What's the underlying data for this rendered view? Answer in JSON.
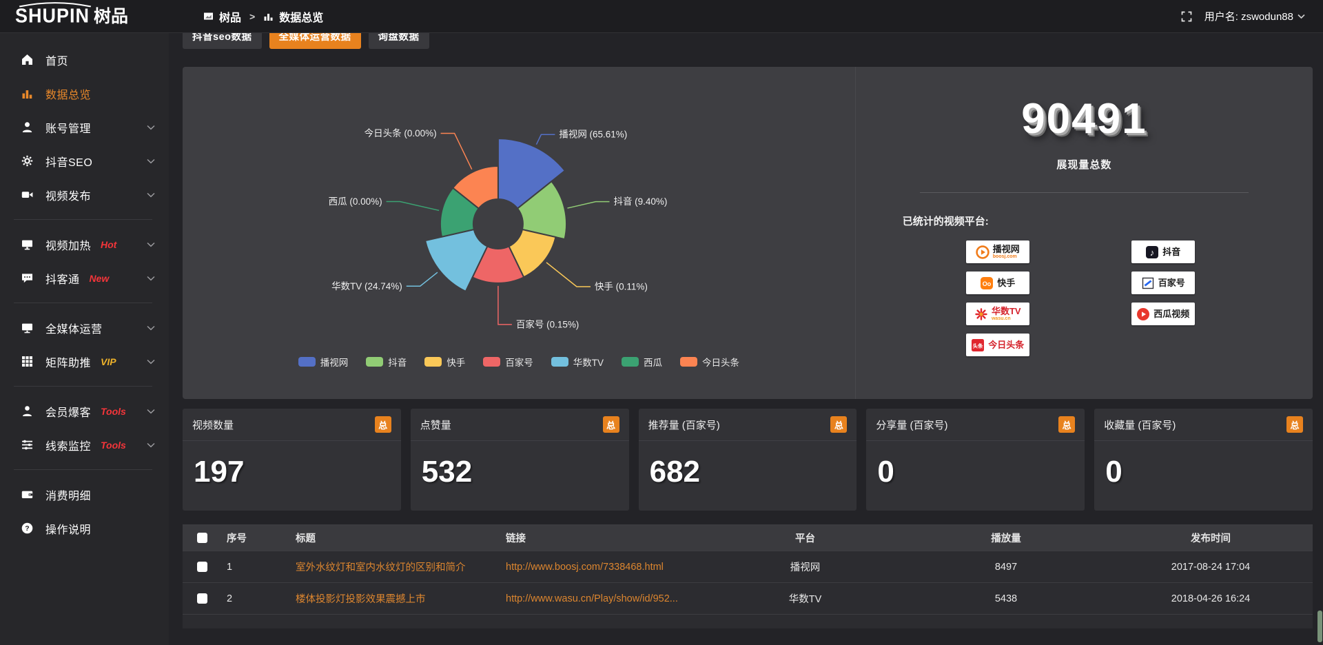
{
  "accent": "#e8821e",
  "header": {
    "logo_en": "SHUPIN",
    "logo_cn": "树品",
    "breadcrumb": {
      "root": "树品",
      "separator": ">",
      "current": "数据总览"
    },
    "username": "用户名: zswodun88"
  },
  "sidebar": {
    "items": [
      {
        "label": "首页",
        "icon": "home",
        "active": false,
        "chevron": false,
        "badge": "",
        "badge_color": "",
        "divider_after": false
      },
      {
        "label": "数据总览",
        "icon": "bar-chart",
        "active": true,
        "chevron": false,
        "badge": "",
        "badge_color": "",
        "divider_after": false
      },
      {
        "label": "账号管理",
        "icon": "user",
        "active": false,
        "chevron": true,
        "badge": "",
        "badge_color": "",
        "divider_after": false
      },
      {
        "label": "抖音SEO",
        "icon": "gear",
        "active": false,
        "chevron": true,
        "badge": "",
        "badge_color": "",
        "divider_after": false
      },
      {
        "label": "视频发布",
        "icon": "video",
        "active": false,
        "chevron": true,
        "badge": "",
        "badge_color": "",
        "divider_after": true
      },
      {
        "label": "视频加热",
        "icon": "screen",
        "active": false,
        "chevron": true,
        "badge": "Hot",
        "badge_color": "#f5353a",
        "divider_after": false
      },
      {
        "label": "抖客通",
        "icon": "chat",
        "active": false,
        "chevron": true,
        "badge": "New",
        "badge_color": "#f5353a",
        "divider_after": true
      },
      {
        "label": "全媒体运营",
        "icon": "monitor",
        "active": false,
        "chevron": true,
        "badge": "",
        "badge_color": "",
        "divider_after": false
      },
      {
        "label": "矩阵助推",
        "icon": "grid",
        "active": false,
        "chevron": true,
        "badge": "VIP",
        "badge_color": "#efb32a",
        "divider_after": true
      },
      {
        "label": "会员爆客",
        "icon": "person",
        "active": false,
        "chevron": true,
        "badge": "Tools",
        "badge_color": "#f5353a",
        "divider_after": false
      },
      {
        "label": "线索监控",
        "icon": "sliders",
        "active": false,
        "chevron": true,
        "badge": "Tools",
        "badge_color": "#f5353a",
        "divider_after": true
      },
      {
        "label": "消费明细",
        "icon": "wallet",
        "active": false,
        "chevron": false,
        "badge": "",
        "badge_color": "",
        "divider_after": false
      },
      {
        "label": "操作说明",
        "icon": "question",
        "active": false,
        "chevron": false,
        "badge": "",
        "badge_color": "",
        "divider_after": false
      }
    ]
  },
  "tabs": [
    {
      "label": "抖音seo数据",
      "active": false
    },
    {
      "label": "全媒体运营数据",
      "active": true
    },
    {
      "label": "询盘数据",
      "active": false
    }
  ],
  "chart_data": {
    "type": "pie",
    "variant": "nightingale-rose",
    "title": "",
    "unit": "%",
    "legend_position": "bottom",
    "items": [
      {
        "name": "播视网",
        "value": 65.61,
        "label": "播视网 (65.61%)",
        "color": "#5470c6"
      },
      {
        "name": "抖音",
        "value": 9.4,
        "label": "抖音 (9.40%)",
        "color": "#91cc75"
      },
      {
        "name": "快手",
        "value": 0.11,
        "label": "快手 (0.11%)",
        "color": "#fac858"
      },
      {
        "name": "百家号",
        "value": 0.15,
        "label": "百家号 (0.15%)",
        "color": "#ee6666"
      },
      {
        "name": "华数TV",
        "value": 24.74,
        "label": "华数TV (24.74%)",
        "color": "#73c0de"
      },
      {
        "name": "西瓜",
        "value": 0.0,
        "label": "西瓜 (0.00%)",
        "color": "#3ba272"
      },
      {
        "name": "今日头条",
        "value": 0.0,
        "label": "今日头条 (0.00%)",
        "color": "#fc8452"
      }
    ],
    "legend": [
      "播视网",
      "抖音",
      "快手",
      "百家号",
      "华数TV",
      "西瓜",
      "今日头条"
    ]
  },
  "summary": {
    "total_value": "90491",
    "total_label": "展现量总数",
    "platforms_title": "已统计的视频平台:",
    "platforms": [
      {
        "name": "播视网",
        "sub": "boosj.com",
        "logo": "boosj",
        "name_color": "#222222",
        "sub_color": "#f07c1b"
      },
      {
        "name": "抖音",
        "sub": "",
        "logo": "douyin",
        "name_color": "#111111",
        "sub_color": ""
      },
      {
        "name": "快手",
        "sub": "",
        "logo": "kuaishou",
        "name_color": "#222222",
        "sub_color": ""
      },
      {
        "name": "百家号",
        "sub": "",
        "logo": "baijiahao",
        "name_color": "#222222",
        "sub_color": ""
      },
      {
        "name": "华数TV",
        "sub": "wasu.cn",
        "logo": "wasu",
        "name_color": "#d5232c",
        "sub_color": "#f59a23"
      },
      {
        "name": "西瓜视频",
        "sub": "",
        "logo": "xigua",
        "name_color": "#222222",
        "sub_color": ""
      },
      {
        "name": "今日头条",
        "sub": "",
        "logo": "toutiao",
        "name_color": "#d5232c",
        "sub_color": ""
      }
    ]
  },
  "stat_cards": [
    {
      "title": "视频数量",
      "badge": "总",
      "value": "197"
    },
    {
      "title": "点赞量",
      "badge": "总",
      "value": "532"
    },
    {
      "title": "推荐量 (百家号)",
      "badge": "总",
      "value": "682"
    },
    {
      "title": "分享量 (百家号)",
      "badge": "总",
      "value": "0"
    },
    {
      "title": "收藏量 (百家号)",
      "badge": "总",
      "value": "0"
    }
  ],
  "table": {
    "columns": [
      "序号",
      "标题",
      "链接",
      "平台",
      "播放量",
      "发布时间"
    ],
    "rows": [
      {
        "index": "1",
        "title": "室外水纹灯和室内水纹灯的区别和简介",
        "link": "http://www.boosj.com/7338468.html",
        "platform": "播视网",
        "plays": "8497",
        "published": "2017-08-24 17:04"
      },
      {
        "index": "2",
        "title": "楼体投影灯投影效果震撼上市",
        "link": "http://www.wasu.cn/Play/show/id/952...",
        "platform": "华数TV",
        "plays": "5438",
        "published": "2018-04-26 16:24"
      }
    ]
  }
}
